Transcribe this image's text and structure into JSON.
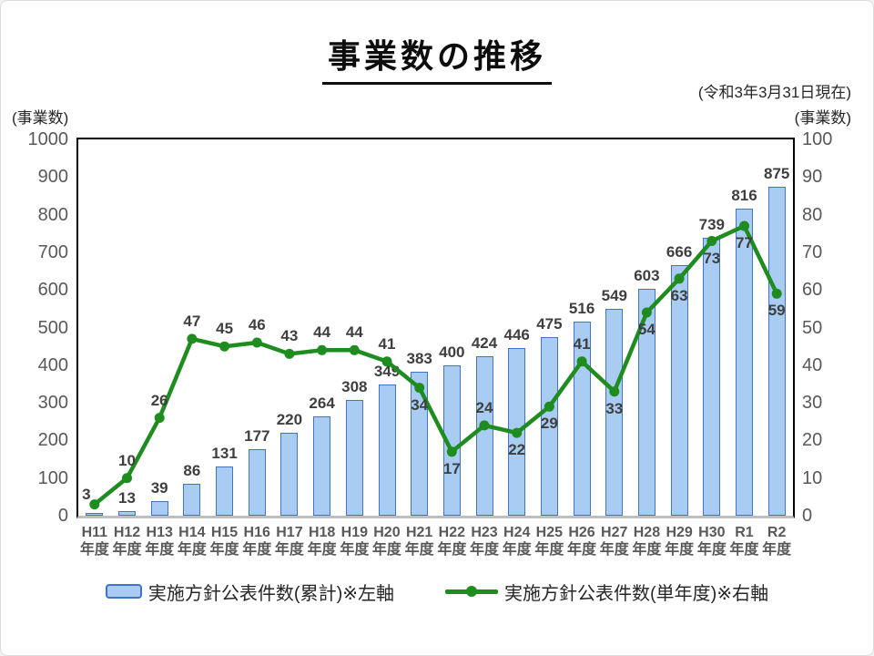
{
  "header": {
    "title": "事業数の推移",
    "date_note": "(令和3年3月31日現在)"
  },
  "chart_data": {
    "type": "combo",
    "categories": [
      "H11",
      "H12",
      "H13",
      "H14",
      "H15",
      "H16",
      "H17",
      "H18",
      "H19",
      "H20",
      "H21",
      "H22",
      "H23",
      "H24",
      "H25",
      "H26",
      "H27",
      "H28",
      "H29",
      "H30",
      "R1",
      "R2"
    ],
    "category_suffix": "年度",
    "series": [
      {
        "name": "実施方針公表件数(累計)※左軸",
        "type": "bar",
        "axis": "left",
        "values": [
          3,
          13,
          39,
          86,
          131,
          177,
          220,
          264,
          308,
          349,
          383,
          400,
          424,
          446,
          475,
          516,
          549,
          603,
          666,
          739,
          816,
          875
        ]
      },
      {
        "name": "実施方針公表件数(単年度)※右軸",
        "type": "line",
        "axis": "right",
        "values": [
          3,
          10,
          26,
          47,
          45,
          46,
          43,
          44,
          44,
          41,
          34,
          17,
          24,
          22,
          29,
          41,
          33,
          54,
          63,
          73,
          77,
          59
        ]
      }
    ],
    "left_axis": {
      "title": "(事業数)",
      "min": 0,
      "max": 1000,
      "step": 100
    },
    "right_axis": {
      "title": "(事業数)",
      "min": 0,
      "max": 100,
      "step": 10
    },
    "legend_position": "bottom",
    "grid": false,
    "data_labels": true,
    "line_label_positions": [
      "left",
      "above",
      "above",
      "above",
      "above",
      "above",
      "above",
      "above",
      "above",
      "above",
      "below",
      "below",
      "above",
      "below",
      "below",
      "above",
      "below",
      "below",
      "below",
      "below",
      "below",
      "below"
    ],
    "colors": {
      "bar_fill": "#A8CCF2",
      "bar_border": "#4472C4",
      "line": "#1E8C1E",
      "value_label": "#3F3F3F",
      "axis_text": "#595959"
    }
  }
}
